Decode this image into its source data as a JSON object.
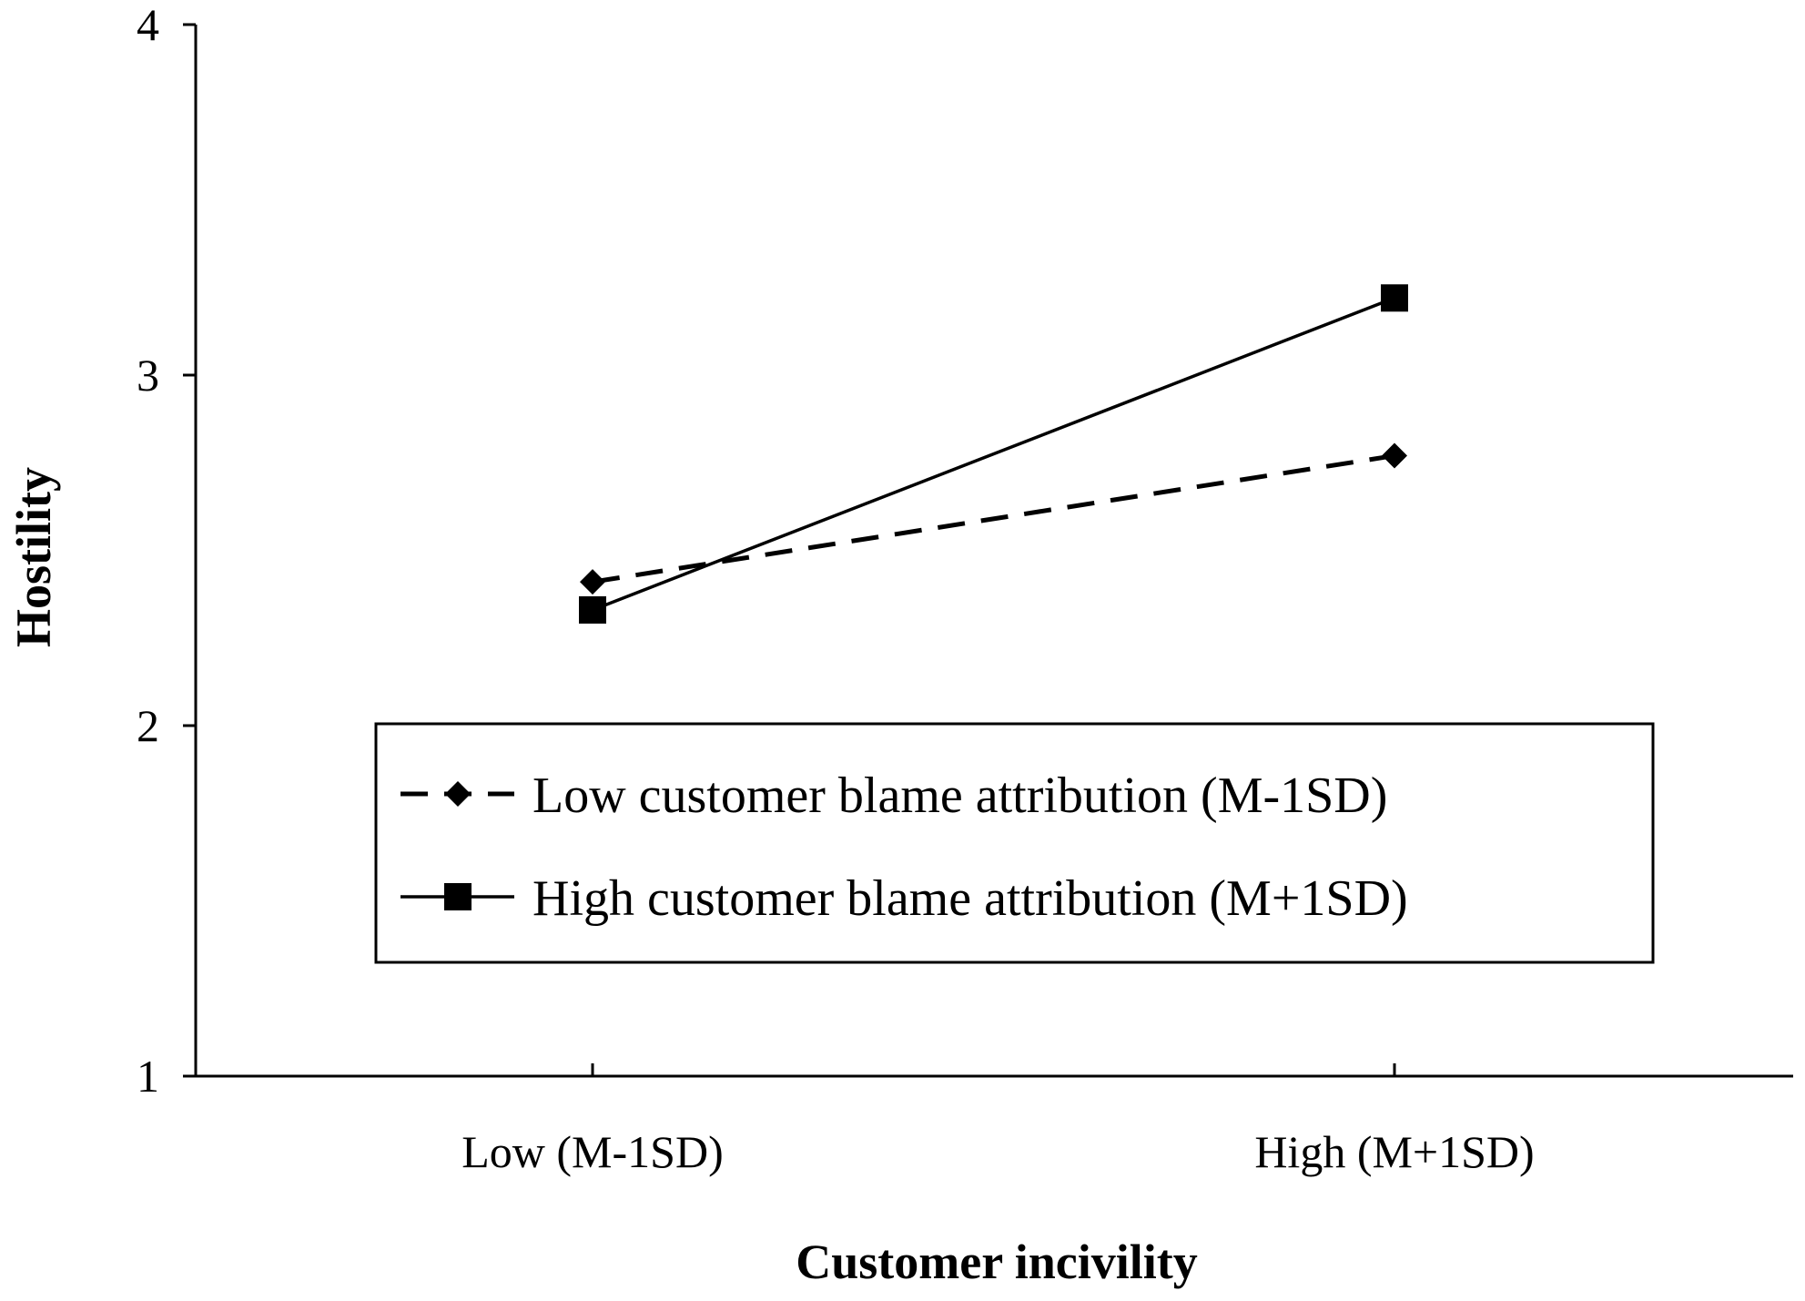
{
  "chart_data": {
    "type": "line",
    "title": "",
    "xlabel": "Customer incivility",
    "ylabel": "Hostility",
    "categories": [
      "Low (M-1SD)",
      "High (M+1SD)"
    ],
    "ylim": [
      1,
      4
    ],
    "yticks": [
      "1",
      "2",
      "3",
      "4"
    ],
    "grid": false,
    "legend_position": "center",
    "series": [
      {
        "name": "Low customer blame attribution (M-1SD)",
        "values": [
          2.41,
          2.77
        ],
        "line_style": "dashed",
        "marker": "diamond",
        "color": "#000000"
      },
      {
        "name": "High customer blame attribution (M+1SD)",
        "values": [
          2.33,
          3.22
        ],
        "line_style": "solid",
        "marker": "square",
        "color": "#000000"
      }
    ]
  }
}
